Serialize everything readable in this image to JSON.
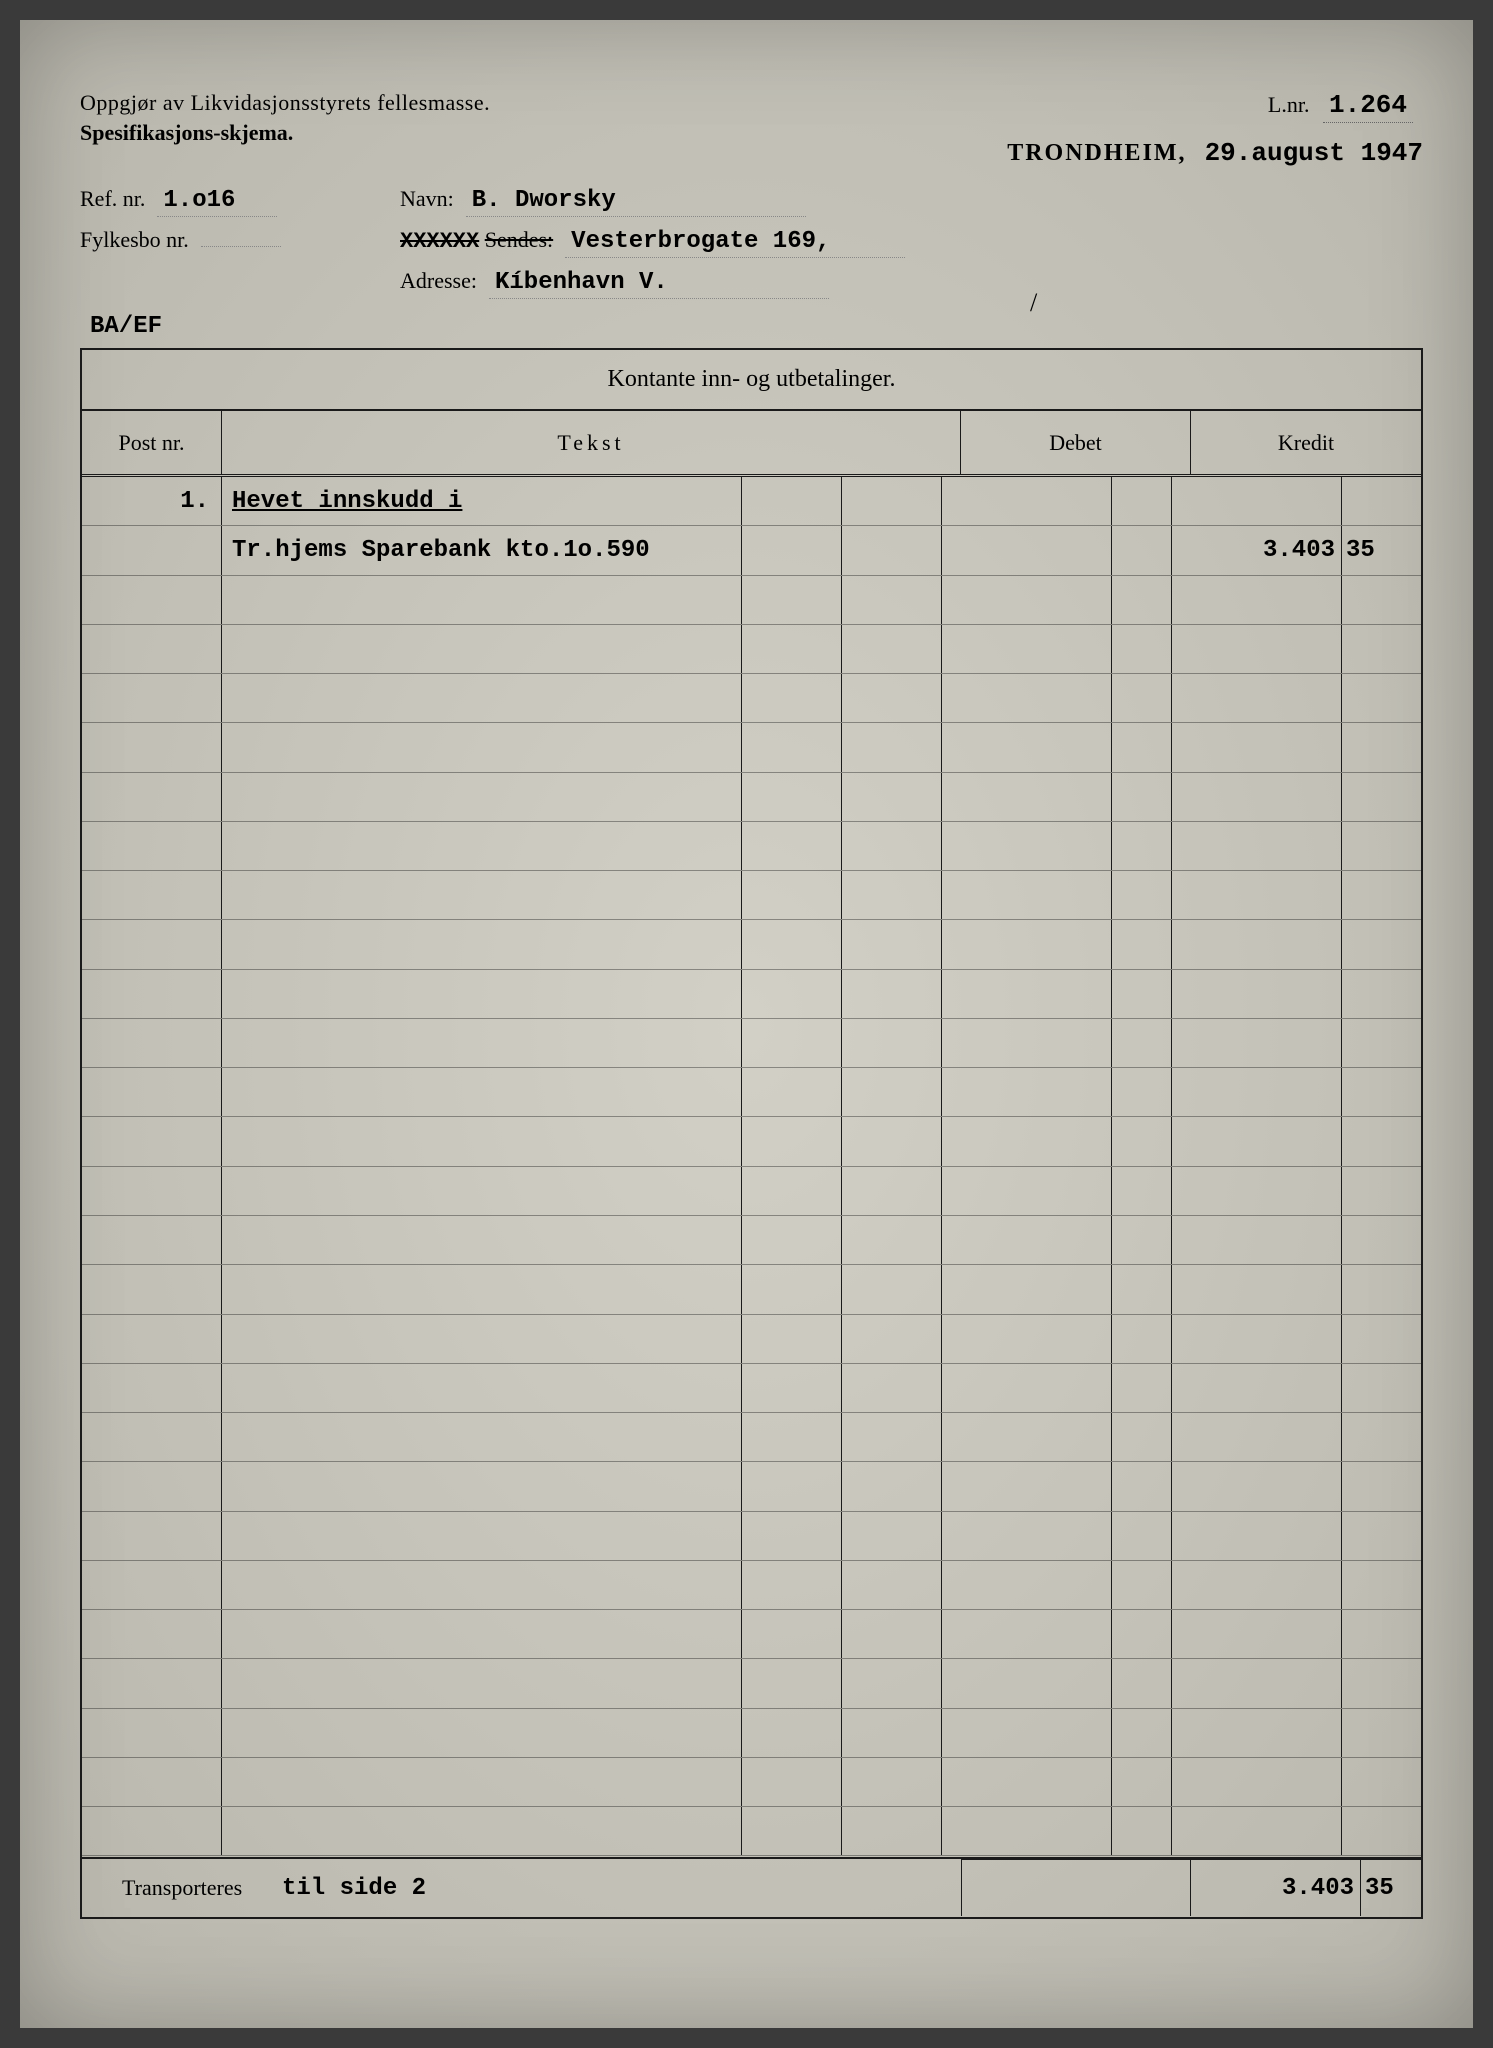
{
  "header": {
    "title_line1": "Oppgjør av Likvidasjonsstyrets fellesmasse.",
    "title_line2": "Spesifikasjons-skjema.",
    "lnr_label": "L.nr.",
    "lnr_value": "1.264",
    "city": "TRONDHEIM,",
    "date": "29.august 1947"
  },
  "fields": {
    "ref_label": "Ref. nr.",
    "ref_value": "1.o16",
    "navn_label": "Navn:",
    "navn_value": "B. Dworsky",
    "slash": "/",
    "fylkesbo_label": "Fylkesbo nr.",
    "fylkesbo_value": "",
    "sendes_label_struck": "Sendes:",
    "sendes_prefix_struck": "XXXXXX",
    "sendes_value": "Vesterbrogate 169,",
    "adresse_label": "Adresse:",
    "adresse_value": "Kíbenhavn V.",
    "annotation": "BA/EF"
  },
  "table": {
    "title": "Kontante inn- og utbetalinger.",
    "columns": {
      "post": "Post nr.",
      "tekst": "Tekst",
      "debet": "Debet",
      "kredit": "Kredit"
    },
    "rows": [
      {
        "post": "1.",
        "tekst": "Hevet innskudd i",
        "underline": true,
        "kredit_main": "",
        "kredit_dec": ""
      },
      {
        "post": "",
        "tekst": "Tr.hjems Sparebank kto.1o.590",
        "underline": false,
        "kredit_main": "3.403",
        "kredit_dec": "35"
      }
    ],
    "empty_row_count": 26,
    "footer": {
      "label": "Transporteres",
      "text": "til side 2",
      "kredit_main": "3.403",
      "kredit_dec": "35"
    }
  },
  "style": {
    "paper_bg": "#c8c6bc",
    "ink": "#1a1a1a",
    "typed_font": "Courier New"
  }
}
